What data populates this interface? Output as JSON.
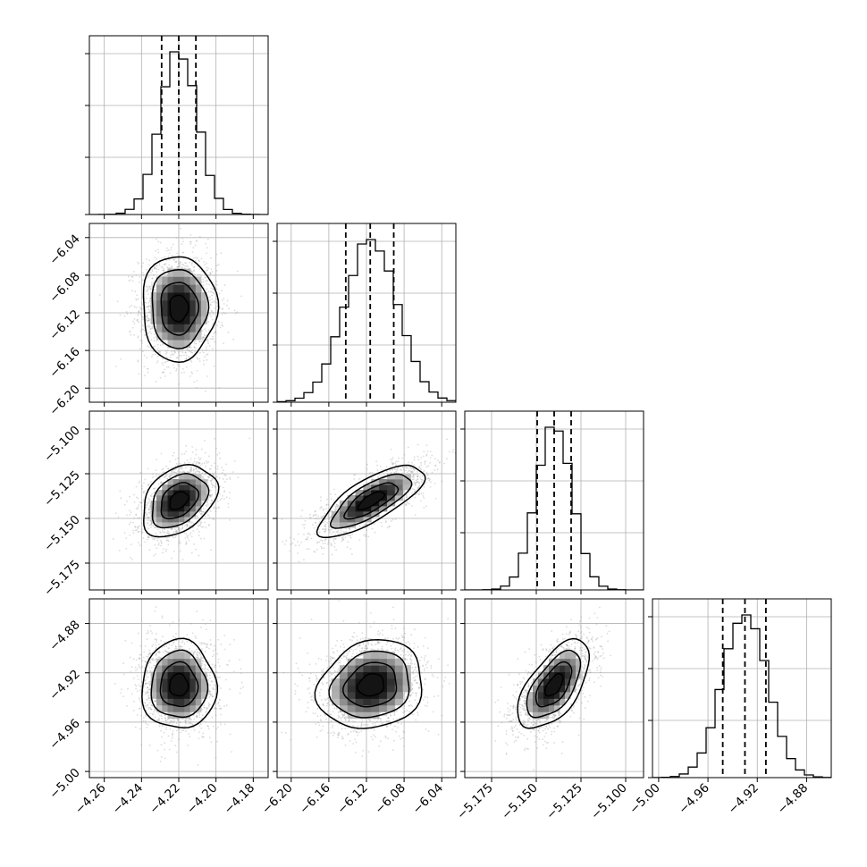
{
  "chart_data": {
    "type": "corner",
    "title": "",
    "grid": true,
    "colors": {
      "line": "#000000",
      "grid": "#b0b0b0",
      "points": "#9a9a9a",
      "background": "#ffffff"
    },
    "parameters": [
      {
        "name": "",
        "mean": -4.22,
        "sigma": 0.01,
        "range": [
          -4.268,
          -4.172
        ],
        "quantiles": [
          -4.2292,
          -4.22,
          -4.2108
        ],
        "ticks": [
          -4.26,
          -4.24,
          -4.22,
          -4.2,
          -4.18
        ],
        "tick_labels": [
          "−4.26",
          "−4.24",
          "−4.22",
          "−4.20",
          "−4.18"
        ]
      },
      {
        "name": "",
        "mean": -6.115,
        "sigma": 0.028,
        "range": [
          -6.215,
          -6.025
        ],
        "quantiles": [
          -6.142,
          -6.116,
          -6.091
        ],
        "ticks": [
          -6.2,
          -6.16,
          -6.12,
          -6.08,
          -6.04
        ],
        "tick_labels": [
          "−6.20",
          "−6.16",
          "−6.12",
          "−6.08",
          "−6.04"
        ]
      },
      {
        "name": "",
        "mean": -5.14,
        "sigma": 0.01,
        "range": [
          -5.19,
          -5.09
        ],
        "quantiles": [
          -5.1495,
          -5.14,
          -5.1305
        ],
        "ticks": [
          -5.175,
          -5.15,
          -5.125,
          -5.1
        ],
        "tick_labels": [
          "−5.175",
          "−5.150",
          "−5.125",
          "−5.100"
        ]
      },
      {
        "name": "",
        "mean": -4.93,
        "sigma": 0.018,
        "range": [
          -5.005,
          -4.86
        ],
        "quantiles": [
          -4.948,
          -4.93,
          -4.913
        ],
        "ticks": [
          -5.0,
          -4.96,
          -4.92,
          -4.88
        ],
        "tick_labels": [
          "−5.00",
          "−4.96",
          "−4.92",
          "−4.88"
        ]
      }
    ],
    "correlations": [
      {
        "pair": [
          1,
          0
        ],
        "rho": 0.0
      },
      {
        "pair": [
          2,
          0
        ],
        "rho": 0.35
      },
      {
        "pair": [
          2,
          1
        ],
        "rho": 0.75
      },
      {
        "pair": [
          3,
          0
        ],
        "rho": 0.0
      },
      {
        "pair": [
          3,
          1
        ],
        "rho": 0.15
      },
      {
        "pair": [
          3,
          2
        ],
        "rho": 0.6
      }
    ],
    "histogram_bins": 20,
    "contour_levels_sigma": [
      0.5,
      1.0,
      1.5,
      2.0
    ]
  }
}
